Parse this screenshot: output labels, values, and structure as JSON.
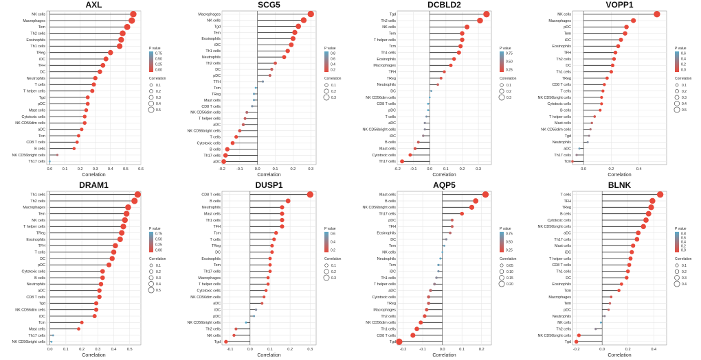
{
  "colors": {
    "high_p": "#5aa9c9",
    "low_p": "#e8483a",
    "stem": "#222222",
    "zero_line": "#444444",
    "frame": "#9a9a9a"
  },
  "chart_data": [
    {
      "type": "lollipop",
      "title": "AXL",
      "xlabel": "Correlation",
      "ylabel": "",
      "xlim": [
        -0.02,
        0.6
      ],
      "xticks": [
        "0.0",
        "0.1",
        "0.2",
        "0.3",
        "0.4",
        "0.5",
        "0.6"
      ],
      "categories": [
        "NK cells",
        "Macrophages",
        "Tem",
        "Th2 cells",
        "Eosinophils",
        "Th1 cells",
        "TReg",
        "iDC",
        "TFH",
        "DC",
        "Neutrophils",
        "T cells",
        "T helper cells",
        "Tgd",
        "pDC",
        "Mast cells",
        "Cytotoxic cells",
        "NK CD56dim cells",
        "aDC",
        "Tcm",
        "CD8 T cells",
        "B cells",
        "NK CD56bright cells",
        "Th17 cells"
      ],
      "values": [
        0.55,
        0.54,
        0.51,
        0.48,
        0.47,
        0.46,
        0.4,
        0.37,
        0.35,
        0.33,
        0.3,
        0.29,
        0.28,
        0.25,
        0.25,
        0.24,
        0.23,
        0.23,
        0.21,
        0.19,
        0.18,
        0.16,
        0.05,
        0.0
      ],
      "pvalues": [
        0.0,
        0.0,
        0.0,
        0.0,
        0.0,
        0.0,
        0.0,
        0.0,
        0.0,
        0.0,
        0.0,
        0.0,
        0.0,
        0.0,
        0.0,
        0.0,
        0.0,
        0.0,
        0.0,
        0.0,
        0.0,
        0.0,
        0.3,
        0.8
      ],
      "legend_p_title": "P value",
      "legend_p_ticks": [
        "0.75",
        "0.50",
        "0.25",
        "0.00"
      ],
      "p_max": 0.8,
      "legend_size_title": "Correlation",
      "legend_size_values": [
        "0.1",
        "0.2",
        "0.3",
        "0.4",
        "0.5"
      ]
    },
    {
      "type": "lollipop",
      "title": "SCG5",
      "xlabel": "Correlation",
      "ylabel": "",
      "xlim": [
        -0.2,
        0.33
      ],
      "xticks": [
        "-0.2",
        "-0.1",
        "0.0",
        "0.1",
        "0.2",
        "0.3"
      ],
      "categories": [
        "Macrophages",
        "NK cells",
        "Tgd",
        "Tem",
        "Eosinophils",
        "iDC",
        "Th1 cells",
        "Neutrophils",
        "Th2 cells",
        "DC",
        "pDC",
        "TFH",
        "Tcm",
        "TReg",
        "Mast cells",
        "CD8 T cells",
        "NK CD56dim cells",
        "T helper cells",
        "aDC",
        "NK CD56bright cells",
        "T cells",
        "Cytotoxic cells",
        "B cells",
        "Th17 cells",
        "aDC"
      ],
      "values": [
        0.3,
        0.26,
        0.23,
        0.21,
        0.2,
        0.19,
        0.17,
        0.15,
        0.1,
        0.08,
        0.07,
        0.03,
        -0.01,
        -0.02,
        -0.02,
        -0.03,
        -0.06,
        -0.07,
        -0.08,
        -0.1,
        -0.12,
        -0.14,
        -0.17,
        -0.18,
        -0.19
      ],
      "pvalues": [
        0.0,
        0.0,
        0.0,
        0.0,
        0.0,
        0.0,
        0.0,
        0.0,
        0.1,
        0.2,
        0.2,
        0.6,
        0.8,
        0.7,
        0.7,
        0.6,
        0.3,
        0.2,
        0.2,
        0.1,
        0.0,
        0.0,
        0.0,
        0.0,
        0.0
      ],
      "legend_p_title": "P value",
      "legend_p_ticks": [
        "0.8",
        "0.6",
        "0.4",
        "0.2"
      ],
      "p_max": 0.8,
      "legend_size_title": "Correlation",
      "legend_size_values": [
        "0.1",
        "0.2",
        "0.3"
      ]
    },
    {
      "type": "lollipop",
      "title": "DCBLD2",
      "xlabel": "Correlation",
      "ylabel": "",
      "xlim": [
        -0.2,
        0.38
      ],
      "xticks": [
        "-0.2",
        "-0.1",
        "0.0",
        "0.1",
        "0.2",
        "0.3"
      ],
      "categories": [
        "Tgd",
        "Th2 cells",
        "NK cells",
        "Tem",
        "T helper cells",
        "Tcm",
        "Th1 cells",
        "Eosinophils",
        "Macrophages",
        "TFH",
        "TReg",
        "Neutrophils",
        "DC",
        "NK CD56dim cells",
        "CD8 T cells",
        "pDC",
        "T cells",
        "aDC",
        "NK CD56bright cells",
        "iDC",
        "B cells",
        "Mast cells",
        "Cytotoxic cells",
        "Th17 cells"
      ],
      "values": [
        0.35,
        0.31,
        0.23,
        0.2,
        0.2,
        0.19,
        0.18,
        0.15,
        0.13,
        0.09,
        0.07,
        0.05,
        0.01,
        0.0,
        -0.01,
        -0.01,
        -0.02,
        -0.03,
        -0.03,
        -0.04,
        -0.07,
        -0.09,
        -0.12,
        -0.17
      ],
      "pvalues": [
        0.0,
        0.0,
        0.0,
        0.0,
        0.0,
        0.0,
        0.0,
        0.0,
        0.0,
        0.05,
        0.1,
        0.2,
        0.8,
        0.9,
        0.9,
        0.9,
        0.7,
        0.6,
        0.6,
        0.5,
        0.2,
        0.1,
        0.0,
        0.0
      ],
      "legend_p_title": "P value",
      "legend_p_ticks": [
        "0.75",
        "0.50",
        "0.25"
      ],
      "p_max": 0.9,
      "legend_size_title": "Correlation",
      "legend_size_values": [
        "0.1",
        "0.2",
        "0.3"
      ]
    },
    {
      "type": "lollipop",
      "title": "VOPP1",
      "xlabel": "Correlation",
      "ylabel": "",
      "xlim": [
        -0.08,
        0.6
      ],
      "xticks": [
        "0.0",
        "0.2",
        "0.4"
      ],
      "categories": [
        "NK cells",
        "Macrophages",
        "pDC",
        "Tem",
        "iDC",
        "Eosinophils",
        "TFH",
        "Th2 cells",
        "DC",
        "Th1 cells",
        "TReg",
        "CD8 T cells",
        "T cells",
        "NK CD56bright cells",
        "Cytotoxic cells",
        "B cells",
        "T helper cells",
        "Mast cells",
        "NK CD56dim cells",
        "Tgd",
        "Neutrophils",
        "aDC",
        "Th17 cells",
        "Tcm"
      ],
      "values": [
        0.53,
        0.36,
        0.31,
        0.3,
        0.27,
        0.25,
        0.23,
        0.22,
        0.21,
        0.2,
        0.17,
        0.15,
        0.14,
        0.13,
        0.13,
        0.12,
        0.08,
        0.06,
        0.05,
        0.04,
        0.03,
        -0.03,
        -0.05,
        -0.08
      ],
      "pvalues": [
        0.0,
        0.0,
        0.0,
        0.0,
        0.0,
        0.0,
        0.0,
        0.0,
        0.0,
        0.0,
        0.0,
        0.0,
        0.0,
        0.0,
        0.0,
        0.0,
        0.1,
        0.2,
        0.3,
        0.4,
        0.5,
        0.6,
        0.4,
        0.1
      ],
      "legend_p_title": "P value",
      "legend_p_ticks": [
        "0.6",
        "0.4",
        "0.2",
        "0.0"
      ],
      "p_max": 0.7,
      "legend_size_title": "Correlation",
      "legend_size_values": [
        "0.1",
        "0.2",
        "0.3",
        "0.4",
        "0.5"
      ]
    },
    {
      "type": "lollipop",
      "title": "DRAM1",
      "xlabel": "Correlation",
      "ylabel": "",
      "xlim": [
        -0.02,
        0.57
      ],
      "xticks": [
        "0.0",
        "0.1",
        "0.2",
        "0.3",
        "0.4",
        "0.5"
      ],
      "categories": [
        "Th1 cells",
        "Th2 cells",
        "Macrophages",
        "Tem",
        "NK cells",
        "T helper cells",
        "TReg",
        "Eosinophils",
        "TFH",
        "T cells",
        "DC",
        "pDC",
        "Cytotoxic cells",
        "B cells",
        "Neutrophils",
        "aDC",
        "CD8 T cells",
        "Tgd",
        "NK CD56dim cells",
        "iDC",
        "Tcm",
        "Mast cells",
        "Th17 cells",
        "NK CD56bright cells"
      ],
      "values": [
        0.55,
        0.53,
        0.49,
        0.48,
        0.47,
        0.46,
        0.45,
        0.44,
        0.41,
        0.4,
        0.39,
        0.37,
        0.33,
        0.33,
        0.32,
        0.31,
        0.31,
        0.29,
        0.29,
        0.28,
        0.2,
        0.18,
        0.02,
        0.01
      ],
      "pvalues": [
        0.0,
        0.0,
        0.0,
        0.0,
        0.0,
        0.0,
        0.0,
        0.0,
        0.0,
        0.0,
        0.0,
        0.0,
        0.0,
        0.0,
        0.0,
        0.0,
        0.0,
        0.0,
        0.0,
        0.0,
        0.0,
        0.0,
        0.7,
        0.8
      ],
      "legend_p_title": "P value",
      "legend_p_ticks": [
        "0.75",
        "0.50",
        "0.25",
        "0.00"
      ],
      "p_max": 0.8,
      "legend_size_title": "Correlation",
      "legend_size_values": [
        "0.1",
        "0.2",
        "0.3",
        "0.4",
        "0.5"
      ]
    },
    {
      "type": "lollipop",
      "title": "DUSP1",
      "xlabel": "Correlation",
      "ylabel": "",
      "xlim": [
        -0.14,
        0.33
      ],
      "xticks": [
        "-0.1",
        "0.0",
        "0.1",
        "0.2",
        "0.3"
      ],
      "categories": [
        "CD8 T cells",
        "B cells",
        "Neutrophils",
        "Mast cells",
        "Th1 cells",
        "TFH",
        "Tcm",
        "T cells",
        "TReg",
        "DC",
        "Eosinophils",
        "Tem",
        "Th17 cells",
        "Macrophages",
        "T helper cells",
        "Cytotoxic cells",
        "NK CD56dim cells",
        "aDC",
        "iDC",
        "pDC",
        "NK CD56bright cells",
        "Th2 cells",
        "NK cells",
        "Tgd"
      ],
      "values": [
        0.3,
        0.19,
        0.16,
        0.16,
        0.16,
        0.16,
        0.13,
        0.12,
        0.11,
        0.11,
        0.1,
        0.1,
        0.1,
        0.09,
        0.09,
        0.08,
        0.07,
        0.06,
        0.03,
        0.02,
        -0.02,
        -0.07,
        -0.08,
        -0.12
      ],
      "pvalues": [
        0.0,
        0.0,
        0.0,
        0.0,
        0.0,
        0.0,
        0.0,
        0.0,
        0.0,
        0.0,
        0.0,
        0.0,
        0.0,
        0.0,
        0.0,
        0.0,
        0.05,
        0.1,
        0.5,
        0.6,
        0.7,
        0.1,
        0.05,
        0.0
      ],
      "legend_p_title": "P value",
      "legend_p_ticks": [
        "0.6",
        "0.4",
        "0.2"
      ],
      "p_max": 0.7,
      "legend_size_title": "Correlation",
      "legend_size_values": [
        "0.1",
        "0.2",
        "0.3"
      ]
    },
    {
      "type": "lollipop",
      "title": "AQP5",
      "xlabel": "Correlation",
      "ylabel": "",
      "xlim": [
        -0.23,
        0.25
      ],
      "xticks": [
        "-0.2",
        "-0.1",
        "0.0",
        "0.1",
        "0.2"
      ],
      "categories": [
        "Mast cells",
        "B cells",
        "NK CD56bright cells",
        "Th17 cells",
        "pDC",
        "TFH",
        "Eosinophils",
        "DC",
        "Tem",
        "NK cells",
        "Neutrophils",
        "Tcm",
        "iDC",
        "Th1 cells",
        "T helper cells",
        "aDC",
        "Cytotoxic cells",
        "TReg",
        "Macrophages",
        "Th2 cells",
        "NK CD56dim cells",
        "Th1 cells",
        "CD8 T cells",
        "Tgd"
      ],
      "values": [
        0.22,
        0.17,
        0.15,
        0.1,
        0.05,
        0.05,
        0.04,
        0.02,
        0.01,
        0.0,
        -0.01,
        -0.02,
        -0.02,
        -0.03,
        -0.04,
        -0.06,
        -0.07,
        -0.07,
        -0.08,
        -0.09,
        -0.11,
        -0.13,
        -0.15,
        -0.22
      ],
      "pvalues": [
        0.0,
        0.0,
        0.0,
        0.0,
        0.2,
        0.2,
        0.3,
        0.6,
        0.8,
        0.9,
        0.9,
        0.8,
        0.7,
        0.6,
        0.5,
        0.3,
        0.2,
        0.2,
        0.1,
        0.05,
        0.0,
        0.0,
        0.0,
        0.0
      ],
      "legend_p_title": "P value",
      "legend_p_ticks": [
        "0.75",
        "0.50",
        "0.25"
      ],
      "p_max": 0.9,
      "legend_size_title": "Correlation",
      "legend_size_values": [
        "0.05",
        "0.10",
        "0.15",
        "0.20"
      ]
    },
    {
      "type": "lollipop",
      "title": "BLNK",
      "xlabel": "Correlation",
      "ylabel": "",
      "xlim": [
        -0.23,
        0.5
      ],
      "xticks": [
        "-0.2",
        "0.0",
        "0.2",
        "0.4"
      ],
      "categories": [
        "T cells",
        "TFH",
        "TReg",
        "B cells",
        "Cytotoxic cells",
        "NK CD56bright cells",
        "aDC",
        "Th17 cells",
        "Mast cells",
        "iDC",
        "T helper cells",
        "CD8 T cells",
        "Th1 cells",
        "DC",
        "Eosinophils",
        "Tcm",
        "Macrophages",
        "Tem",
        "pDC",
        "Neutrophils",
        "NK cells",
        "Th2 cells",
        "NK CD56bright cells",
        "Tgd"
      ],
      "values": [
        0.45,
        0.39,
        0.38,
        0.36,
        0.34,
        0.32,
        0.28,
        0.27,
        0.24,
        0.23,
        0.22,
        0.21,
        0.2,
        0.19,
        0.15,
        0.13,
        0.07,
        0.06,
        0.05,
        0.02,
        -0.01,
        -0.05,
        -0.18,
        -0.2
      ],
      "pvalues": [
        0.0,
        0.0,
        0.0,
        0.0,
        0.0,
        0.0,
        0.0,
        0.0,
        0.0,
        0.0,
        0.0,
        0.0,
        0.0,
        0.0,
        0.0,
        0.0,
        0.1,
        0.2,
        0.2,
        0.5,
        0.8,
        0.5,
        0.0,
        0.0
      ],
      "legend_p_title": "P value",
      "legend_p_ticks": [
        "0.8",
        "0.6",
        "0.4",
        "0.2",
        "0.0"
      ],
      "p_max": 0.8,
      "legend_size_title": "Correlation",
      "legend_size_values": [
        "0.1",
        "0.2",
        "0.3",
        "0.4"
      ]
    }
  ]
}
